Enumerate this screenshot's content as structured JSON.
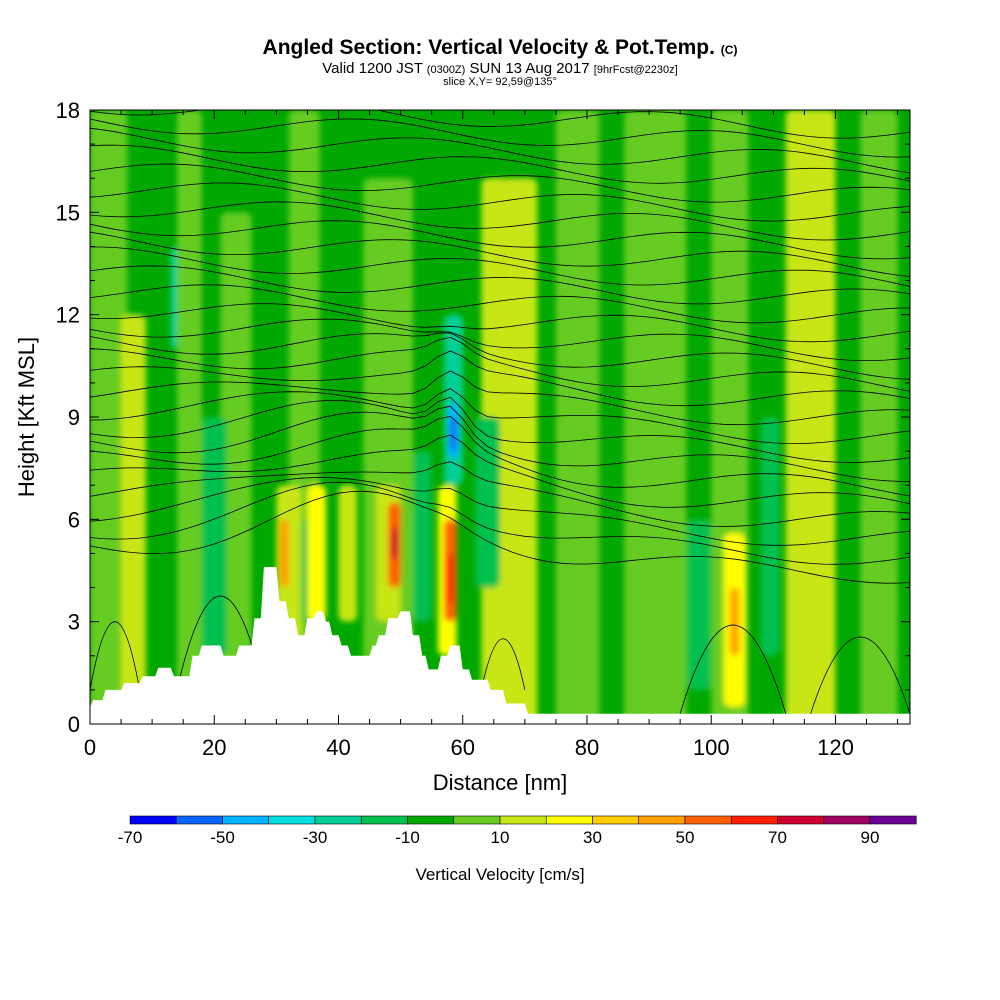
{
  "header": {
    "title": "Angled Section: Vertical Velocity & Pot.Temp.",
    "title_suffix": "(C)",
    "subtitle_a": "Valid 1200 JST",
    "subtitle_b": "(0300Z)",
    "subtitle_c": "SUN 13 Aug 2017",
    "subtitle_d": "[9hrFcst@2230z]",
    "slice": "slice X,Y= 92,59@135°"
  },
  "chart_data": {
    "type": "heatmap",
    "xlabel": "Distance [nm]",
    "ylabel": "Height [Kft MSL]",
    "xlim": [
      0,
      132
    ],
    "ylim": [
      0,
      18
    ],
    "x_ticks": [
      0,
      20,
      40,
      60,
      80,
      100,
      120
    ],
    "y_ticks": [
      0,
      3,
      6,
      9,
      12,
      15,
      18
    ],
    "colorbar": {
      "title": "Vertical Velocity [cm/s]",
      "ticks": [
        -70,
        -50,
        -30,
        -10,
        10,
        30,
        50,
        70,
        90
      ],
      "bounds": [
        -70,
        -60,
        -50,
        -40,
        -30,
        -20,
        -10,
        0,
        10,
        20,
        30,
        40,
        50,
        60,
        70,
        80,
        90
      ],
      "colors": [
        "#0000ff",
        "#0a64ff",
        "#00b4ff",
        "#00e0e0",
        "#00d098",
        "#00c050",
        "#00a800",
        "#66cc22",
        "#c8e614",
        "#ffff00",
        "#ffcc00",
        "#ffa000",
        "#ff6000",
        "#ff2000",
        "#d0002c",
        "#a00064",
        "#6a0096"
      ]
    },
    "terrain": [
      [
        0,
        0.5
      ],
      [
        0.5,
        0.7
      ],
      [
        2,
        0.7
      ],
      [
        2.5,
        1
      ],
      [
        5,
        1
      ],
      [
        5.5,
        1.2
      ],
      [
        8,
        1.2
      ],
      [
        8.5,
        1.4
      ],
      [
        10.5,
        1.4
      ],
      [
        11,
        1.65
      ],
      [
        13,
        1.65
      ],
      [
        13.5,
        1.4
      ],
      [
        16,
        1.4
      ],
      [
        16.5,
        2
      ],
      [
        17.5,
        2
      ],
      [
        18,
        2.3
      ],
      [
        21,
        2.3
      ],
      [
        21.5,
        2
      ],
      [
        23.5,
        2
      ],
      [
        24,
        2.3
      ],
      [
        26,
        2.3
      ],
      [
        26.5,
        3.1
      ],
      [
        27.5,
        3.1
      ],
      [
        28,
        4.6
      ],
      [
        30,
        4.6
      ],
      [
        30.5,
        3.6
      ],
      [
        31.5,
        3.6
      ],
      [
        32,
        3.1
      ],
      [
        33,
        3.1
      ],
      [
        33.5,
        2.6
      ],
      [
        34.5,
        2.6
      ],
      [
        35,
        3.1
      ],
      [
        36,
        3.1
      ],
      [
        36.5,
        3.3
      ],
      [
        37.5,
        3.3
      ],
      [
        38,
        3
      ],
      [
        38.5,
        3
      ],
      [
        39,
        2.6
      ],
      [
        40,
        2.6
      ],
      [
        40.5,
        2.3
      ],
      [
        41.5,
        2.3
      ],
      [
        42,
        2
      ],
      [
        45,
        2
      ],
      [
        45.5,
        2.3
      ],
      [
        46,
        2.3
      ],
      [
        46.5,
        2.6
      ],
      [
        47.5,
        2.6
      ],
      [
        48,
        3.1
      ],
      [
        49.5,
        3.1
      ],
      [
        50,
        3.3
      ],
      [
        51.5,
        3.3
      ],
      [
        52,
        2.6
      ],
      [
        53,
        2.6
      ],
      [
        53.5,
        2
      ],
      [
        54,
        2
      ],
      [
        54.5,
        1.6
      ],
      [
        56,
        1.6
      ],
      [
        56.5,
        2
      ],
      [
        57.5,
        2
      ],
      [
        58,
        2.3
      ],
      [
        59.5,
        2.3
      ],
      [
        60,
        1.6
      ],
      [
        61,
        1.6
      ],
      [
        61.5,
        1.3
      ],
      [
        64,
        1.3
      ],
      [
        64.5,
        1
      ],
      [
        66.5,
        1
      ],
      [
        67,
        0.6
      ],
      [
        70,
        0.6
      ],
      [
        70.5,
        0.3
      ],
      [
        132,
        0.3
      ],
      [
        132,
        0
      ],
      [
        0,
        0
      ]
    ],
    "potential_temperature_contours": {
      "line_color": "#000000",
      "levels": [
        28,
        30,
        32,
        34,
        36,
        38,
        40,
        42,
        44,
        46,
        48,
        50,
        52,
        54,
        56,
        58,
        60,
        62,
        64
      ]
    }
  }
}
